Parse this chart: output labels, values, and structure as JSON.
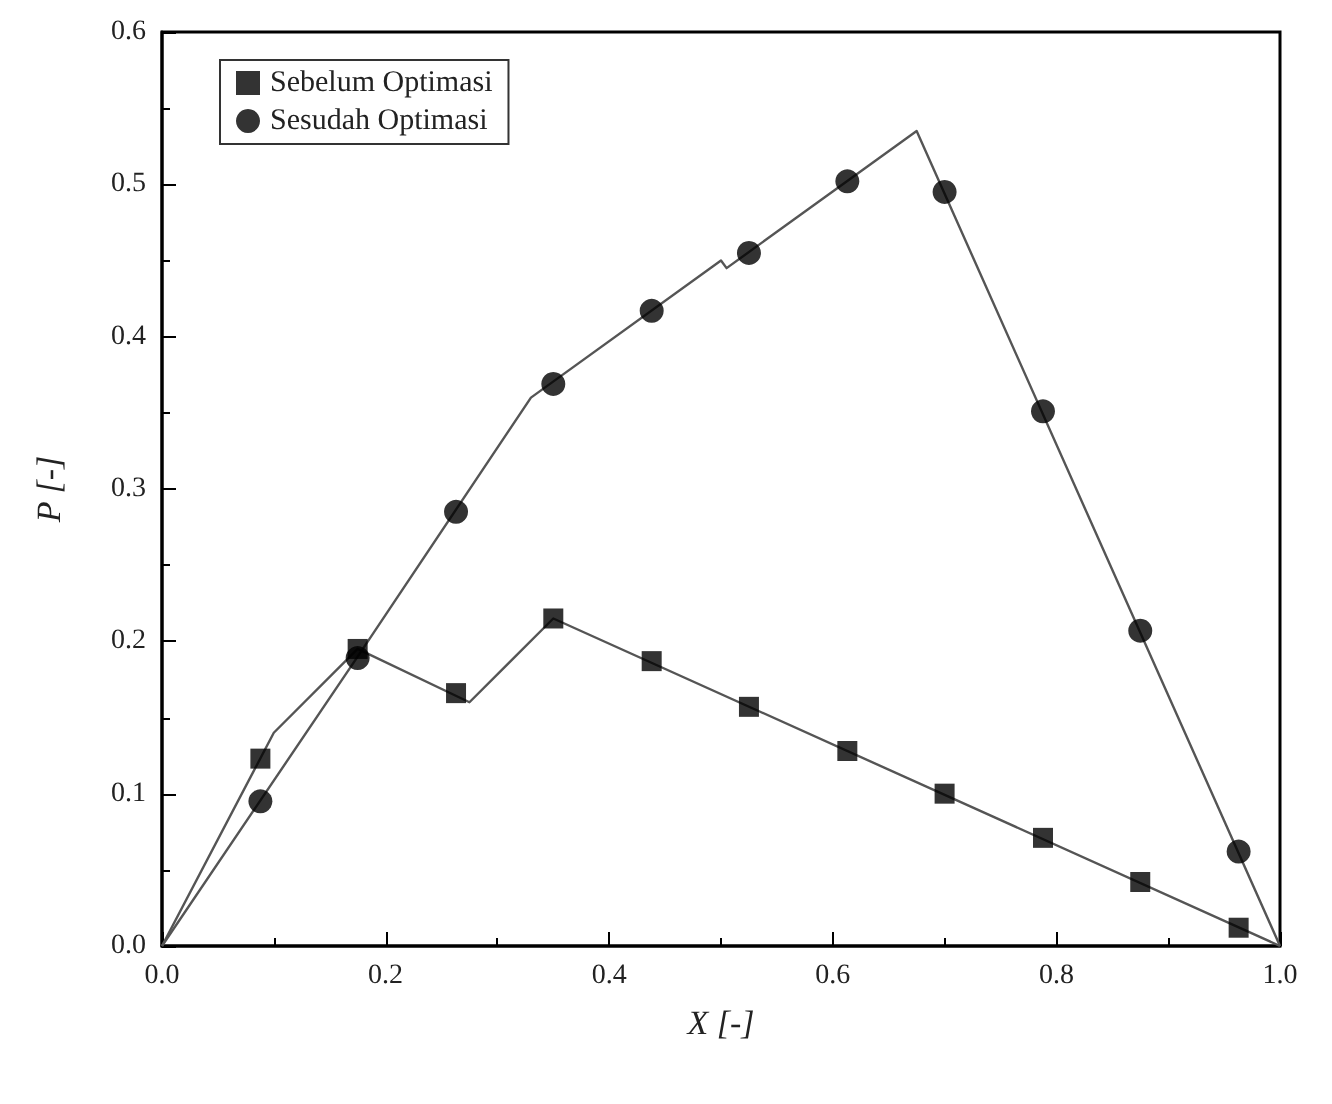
{
  "chart_data": {
    "type": "scatter",
    "xlabel": "X [-]",
    "ylabel": "P [-]",
    "xlim": [
      0,
      1
    ],
    "ylim": [
      0,
      0.6
    ],
    "xticks": [
      {
        "value": 0,
        "label": "0.0"
      },
      {
        "value": 0.2,
        "label": "0.2"
      },
      {
        "value": 0.4,
        "label": "0.4"
      },
      {
        "value": 0.6,
        "label": "0.6"
      },
      {
        "value": 0.8,
        "label": "0.8"
      },
      {
        "value": 1,
        "label": "1.0"
      }
    ],
    "yticks": [
      {
        "value": 0,
        "label": "0.0"
      },
      {
        "value": 0.1,
        "label": "0.1"
      },
      {
        "value": 0.2,
        "label": "0.2"
      },
      {
        "value": 0.3,
        "label": "0.3"
      },
      {
        "value": 0.4,
        "label": "0.4"
      },
      {
        "value": 0.5,
        "label": "0.5"
      },
      {
        "value": 0.6,
        "label": "0.6"
      }
    ],
    "grid": false,
    "legend": "top left",
    "series": [
      {
        "name": "Sebelum Optimasi",
        "color": "#000000",
        "marker": "square",
        "x": [
          0.088,
          0.175,
          0.263,
          0.35,
          0.438,
          0.525,
          0.613,
          0.7,
          0.788,
          0.875,
          0.963
        ],
        "values": [
          0.123,
          0.195,
          0.166,
          0.215,
          0.187,
          0.157,
          0.128,
          0.1,
          0.071,
          0.042,
          0.012
        ]
      },
      {
        "name": "Sesudah Optimasi",
        "color": "#000000",
        "marker": "circle",
        "x": [
          0.088,
          0.175,
          0.263,
          0.35,
          0.438,
          0.525,
          0.613,
          0.7,
          0.788,
          0.875,
          0.963
        ],
        "values": [
          0.095,
          0.189,
          0.285,
          0.369,
          0.417,
          0.455,
          0.502,
          0.495,
          0.351,
          0.207,
          0.062
        ]
      },
      {
        "type": "line",
        "color": "#555555",
        "marker": "none",
        "x": [
          0,
          0.1,
          0.175,
          0.275,
          0.35,
          1.0
        ],
        "values": [
          0,
          0.14,
          0.195,
          0.16,
          0.215,
          0
        ]
      },
      {
        "type": "line",
        "color": "#555555",
        "marker": "none",
        "x": [
          0,
          0.175,
          0.33,
          0.5,
          0.505,
          0.675,
          1.0
        ],
        "values": [
          0,
          0.19,
          0.36,
          0.45,
          0.445,
          0.535,
          0
        ]
      }
    ]
  }
}
